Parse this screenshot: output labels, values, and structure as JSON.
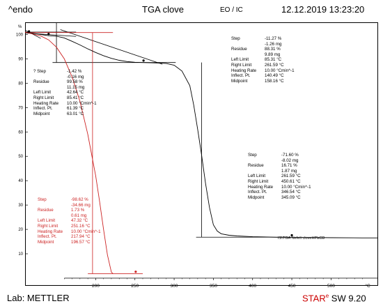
{
  "header": {
    "endo": "^endo",
    "title": "TGA   clove",
    "mode": "EO / IC",
    "datetime": "12.12.2019 13:23:20"
  },
  "footer": {
    "lab": "Lab: METTLER",
    "star": "STAR",
    "reg": "e",
    "sw": " SW 9.20"
  },
  "chart_data": {
    "type": "line",
    "ylabel": "%",
    "xunit": "°C",
    "xlim": [
      110,
      560
    ],
    "ylim": [
      0,
      105
    ],
    "x_ticks": [
      200,
      250,
      300,
      350,
      400,
      450,
      500
    ],
    "y_ticks": [
      10,
      20,
      30,
      40,
      50,
      60,
      70,
      80,
      90,
      100
    ],
    "series": [
      {
        "color": "#000000",
        "x": [
          110,
          120,
          130,
          140,
          150,
          160,
          170,
          180,
          190,
          200,
          210,
          220,
          230,
          240,
          250,
          260,
          270,
          280,
          290,
          300,
          310,
          320,
          325,
          330,
          335,
          340,
          345,
          350,
          355,
          360,
          370,
          380,
          400,
          430,
          460,
          500,
          540,
          560
        ],
        "y": [
          101,
          100.5,
          100,
          99.5,
          99.3,
          98.6,
          97.2,
          95.7,
          94.1,
          92.6,
          91.3,
          90.2,
          89.4,
          88.9,
          88.6,
          88.5,
          88.4,
          88.3,
          88.1,
          87.4,
          85.0,
          79.0,
          71.0,
          61.0,
          50.5,
          39.0,
          29.0,
          21.9,
          19.3,
          18.2,
          17.6,
          17.3,
          17.0,
          16.8,
          16.7,
          16.6,
          16.5,
          16.5
        ]
      },
      {
        "color": "#cc2222",
        "x": [
          110,
          120,
          130,
          140,
          150,
          160,
          170,
          180,
          190,
          200,
          205,
          210,
          215,
          220,
          222
        ],
        "y": [
          101,
          100.2,
          99.4,
          97.8,
          94.8,
          90.0,
          82.5,
          72.5,
          59.0,
          42.0,
          31.5,
          20.0,
          9.5,
          2.5,
          1.8
        ]
      }
    ],
    "tables": [
      {
        "color": "#000000",
        "rows": [
          [
            "Step",
            "-11.27 %"
          ],
          [
            "",
            "-1.26 mg"
          ],
          [
            "Residue",
            "88.31 %"
          ],
          [
            "",
            "9.89 mg"
          ],
          [
            "Left Limit",
            "85.31 °C"
          ],
          [
            "Right Limit",
            "261.59 °C"
          ],
          [
            "Heating Rate",
            "10.00 °Cmin^-1"
          ],
          [
            "Inflect. Pt.",
            "140.49 °C"
          ],
          [
            "Midpoint",
            "158.16 °C"
          ]
        ]
      },
      {
        "color": "#000000",
        "rows": [
          [
            "? Step",
            "-1.42 %"
          ],
          [
            "",
            "-0.16 mg"
          ],
          [
            "Residue",
            "99.58 %"
          ],
          [
            "",
            "11.15 mg"
          ],
          [
            "Left Limit",
            "42.64 °C"
          ],
          [
            "Right Limit",
            "85.41 °C"
          ],
          [
            "Heating Rate",
            "10.00 °Cmin^-1"
          ],
          [
            "Inflect. Pt.",
            "61.39 °C"
          ],
          [
            "Midpoint",
            "63.01 °C"
          ]
        ]
      },
      {
        "color": "#000000",
        "rows": [
          [
            "Step",
            "-71.60 %"
          ],
          [
            "",
            "-8.02 mg"
          ],
          [
            "Residue",
            "16.71 %"
          ],
          [
            "",
            "1.87 mg"
          ],
          [
            "Left Limit",
            "261.59 °C"
          ],
          [
            "Right Limit",
            "450.61 °C"
          ],
          [
            "Heating Rate",
            "10.00 °Cmin^-1"
          ],
          [
            "Inflect. Pt.",
            "346.54 °C"
          ],
          [
            "Midpoint",
            "345.09 °C"
          ]
        ]
      },
      {
        "color": "#cc2222",
        "rows": [
          [
            "Step",
            "-98.62 %"
          ],
          [
            "",
            "-34.66 mg"
          ],
          [
            "Residue",
            "1.73 %"
          ],
          [
            "",
            "0.61 mg"
          ],
          [
            "Left Limit",
            "47.32 °C"
          ],
          [
            "Right Limit",
            "251.16 °C"
          ],
          [
            "Heating Rate",
            "10.00 °Cmin^-1"
          ],
          [
            "Inflect. Pt.",
            "217.94 °C"
          ],
          [
            "Midpoint",
            "196.57 °C"
          ]
        ]
      }
    ],
    "curve_label": "IS\\TGA Nefeli cloveHPbCD"
  }
}
